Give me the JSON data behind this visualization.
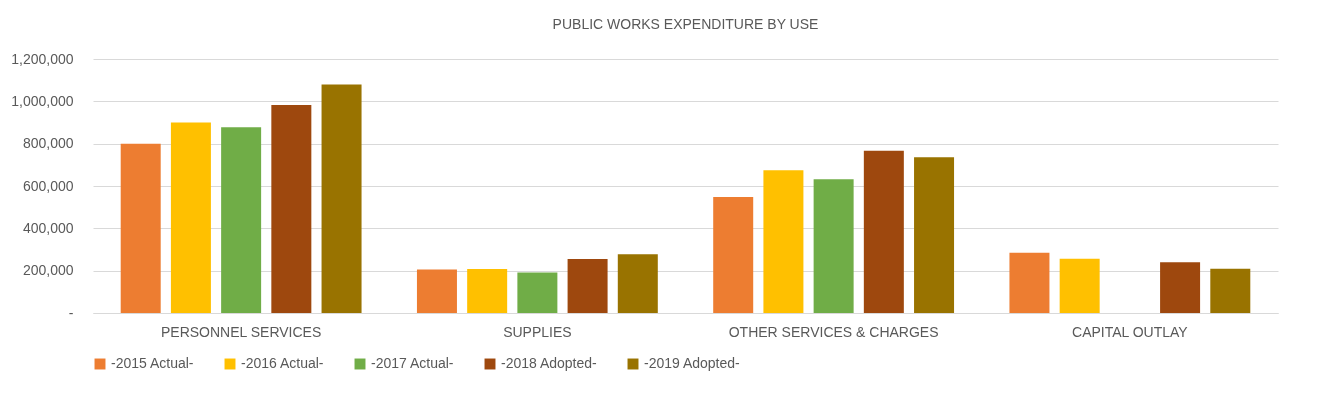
{
  "chart_data": {
    "type": "bar",
    "title": "PUBLIC WORKS EXPENDITURE BY USE",
    "categories": [
      "PERSONNEL SERVICES",
      "SUPPLIES",
      "OTHER SERVICES & CHARGES",
      "CAPITAL OUTLAY"
    ],
    "series": [
      {
        "name": "-2015 Actual-",
        "color": "#ed7d31",
        "values": [
          800000,
          206000,
          548000,
          285000
        ]
      },
      {
        "name": "-2016 Actual-",
        "color": "#ffc000",
        "values": [
          900000,
          208000,
          675000,
          256000
        ]
      },
      {
        "name": "-2017 Actual-",
        "color": "#70ad47",
        "values": [
          877000,
          191000,
          632000,
          null
        ]
      },
      {
        "name": "-2018 Adopted-",
        "color": "#9e480e",
        "values": [
          983000,
          255000,
          767000,
          240000
        ]
      },
      {
        "name": "-2019 Adopted-",
        "color": "#997300",
        "values": [
          1080000,
          278000,
          736000,
          209000
        ]
      }
    ],
    "ylim": [
      0,
      1200000
    ],
    "yticks": [
      {
        "value": 0,
        "label": "-"
      },
      {
        "value": 200000,
        "label": "200,000"
      },
      {
        "value": 400000,
        "label": "400,000"
      },
      {
        "value": 600000,
        "label": "600,000"
      },
      {
        "value": 800000,
        "label": "800,000"
      },
      {
        "value": 1000000,
        "label": "1,000,000"
      },
      {
        "value": 1200000,
        "label": "1,200,000"
      }
    ],
    "grid": "y",
    "legend": "bottom"
  }
}
